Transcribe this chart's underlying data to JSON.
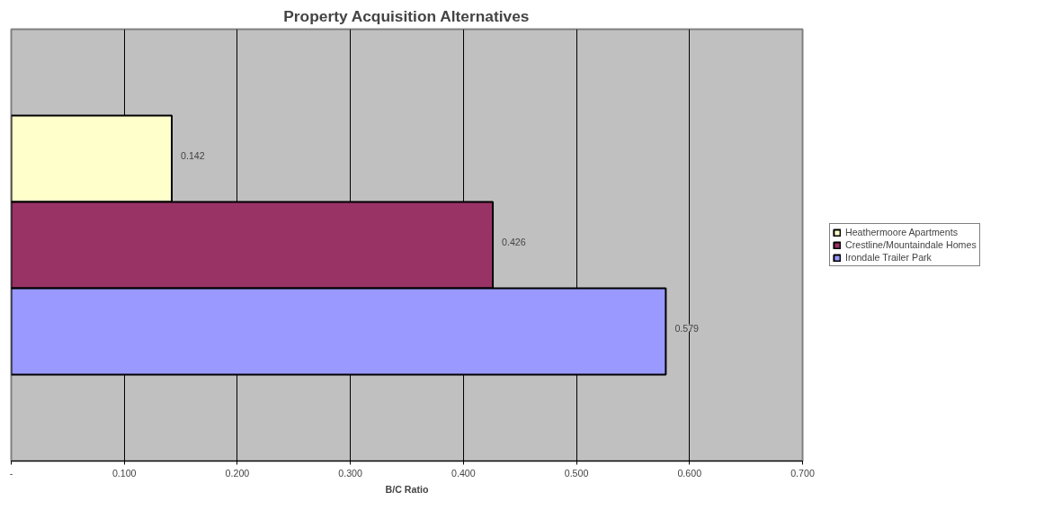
{
  "chart_data": {
    "type": "bar",
    "orientation": "horizontal",
    "title": "Property Acquisition Alternatives",
    "xlabel": "B/C Ratio",
    "categories": [
      null
    ],
    "series": [
      {
        "name": "Heathermoore Apartments",
        "color": "#ffffcc",
        "values": [
          0.142
        ]
      },
      {
        "name": "Crestline/Mountaindale Homes",
        "color": "#993366",
        "values": [
          0.426
        ]
      },
      {
        "name": "Irondale Trailer Park",
        "color": "#9999ff",
        "values": [
          0.579
        ]
      }
    ],
    "xlim": [
      0,
      0.7
    ],
    "xticks": [
      {
        "value": 0,
        "label": "-"
      },
      {
        "value": 0.1,
        "label": "0.100"
      },
      {
        "value": 0.2,
        "label": "0.200"
      },
      {
        "value": 0.3,
        "label": "0.300"
      },
      {
        "value": 0.4,
        "label": "0.400"
      },
      {
        "value": 0.5,
        "label": "0.500"
      },
      {
        "value": 0.6,
        "label": "0.600"
      },
      {
        "value": 0.7,
        "label": "0.700"
      }
    ],
    "data_labels": true,
    "grid": "x",
    "legend": "right",
    "tick_labels": "x"
  }
}
